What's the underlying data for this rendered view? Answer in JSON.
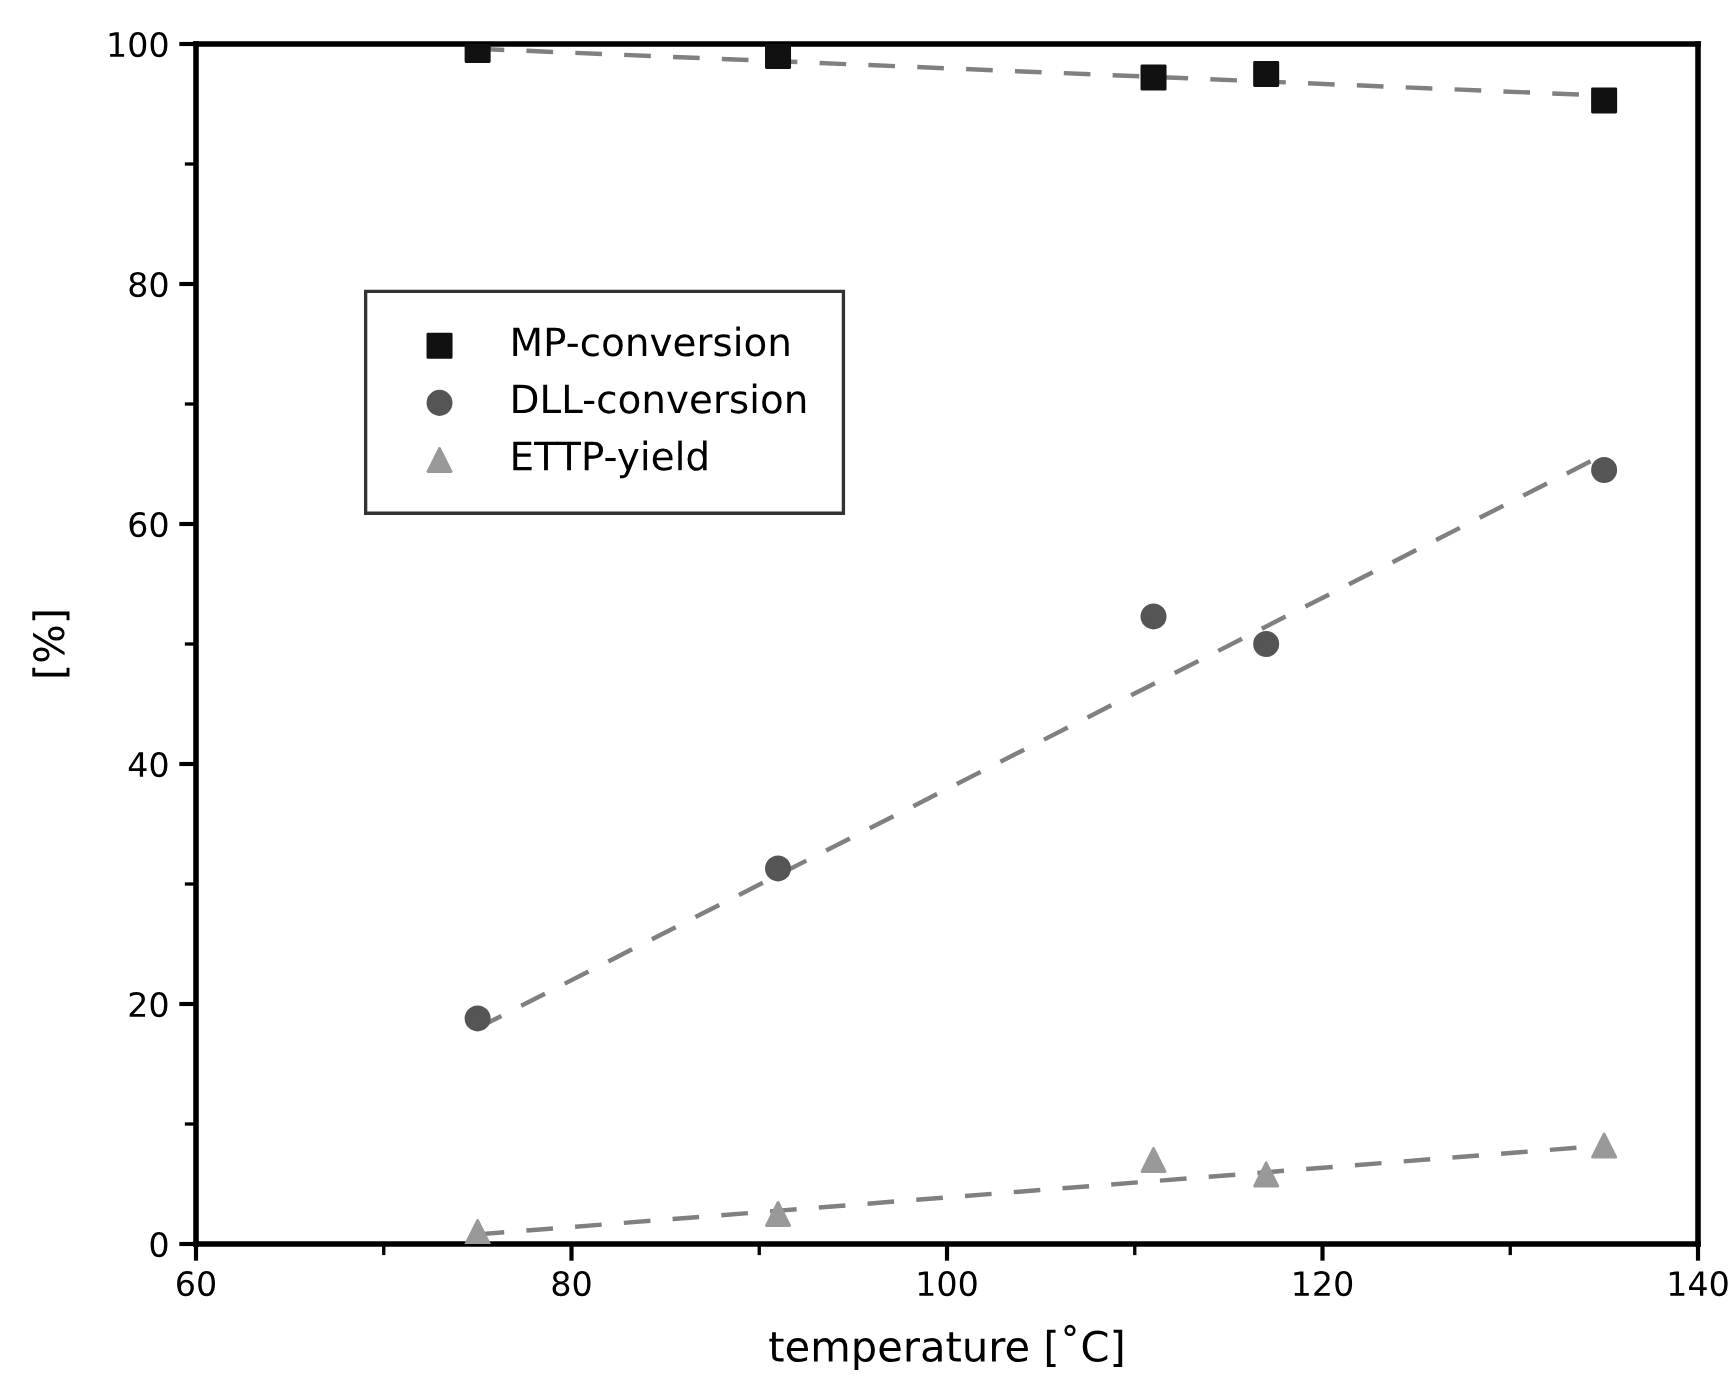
{
  "chart_data": {
    "type": "scatter",
    "xlabel": "temperature [˚C]",
    "ylabel": "[%]",
    "xlim": [
      60,
      140
    ],
    "xticks": [
      60,
      80,
      100,
      120,
      140
    ],
    "ylim": [
      0,
      100
    ],
    "yticks": [
      0,
      20,
      40,
      60,
      80,
      100
    ],
    "grid": false,
    "legend": "top left",
    "series": [
      {
        "name": "MP-conversion",
        "marker": "square",
        "color": "#111111",
        "x": [
          75,
          91,
          111,
          117,
          135
        ],
        "values": [
          99.5,
          99.0,
          97.2,
          97.5,
          95.3
        ]
      },
      {
        "name": "DLL-conversion",
        "marker": "circle",
        "color": "#555555",
        "x": [
          75,
          91,
          111,
          117,
          135
        ],
        "values": [
          18.8,
          31.3,
          52.3,
          50.0,
          64.5
        ]
      },
      {
        "name": "ETTP-yield",
        "marker": "triangle",
        "color": "#999999",
        "x": [
          75,
          91,
          111,
          117,
          135
        ],
        "values": [
          1.0,
          2.5,
          7.0,
          5.8,
          8.2
        ]
      },
      {
        "type": "line",
        "line_style": "dashed",
        "color": "#808080",
        "x": [
          75,
          135
        ],
        "values": [
          99.6,
          95.7
        ]
      },
      {
        "type": "line",
        "line_style": "dashed",
        "color": "#808080",
        "x": [
          75,
          135
        ],
        "values": [
          18.0,
          65.8
        ]
      },
      {
        "type": "line",
        "line_style": "dashed",
        "color": "#808080",
        "x": [
          75,
          135
        ],
        "values": [
          0.8,
          8.2
        ]
      }
    ]
  }
}
